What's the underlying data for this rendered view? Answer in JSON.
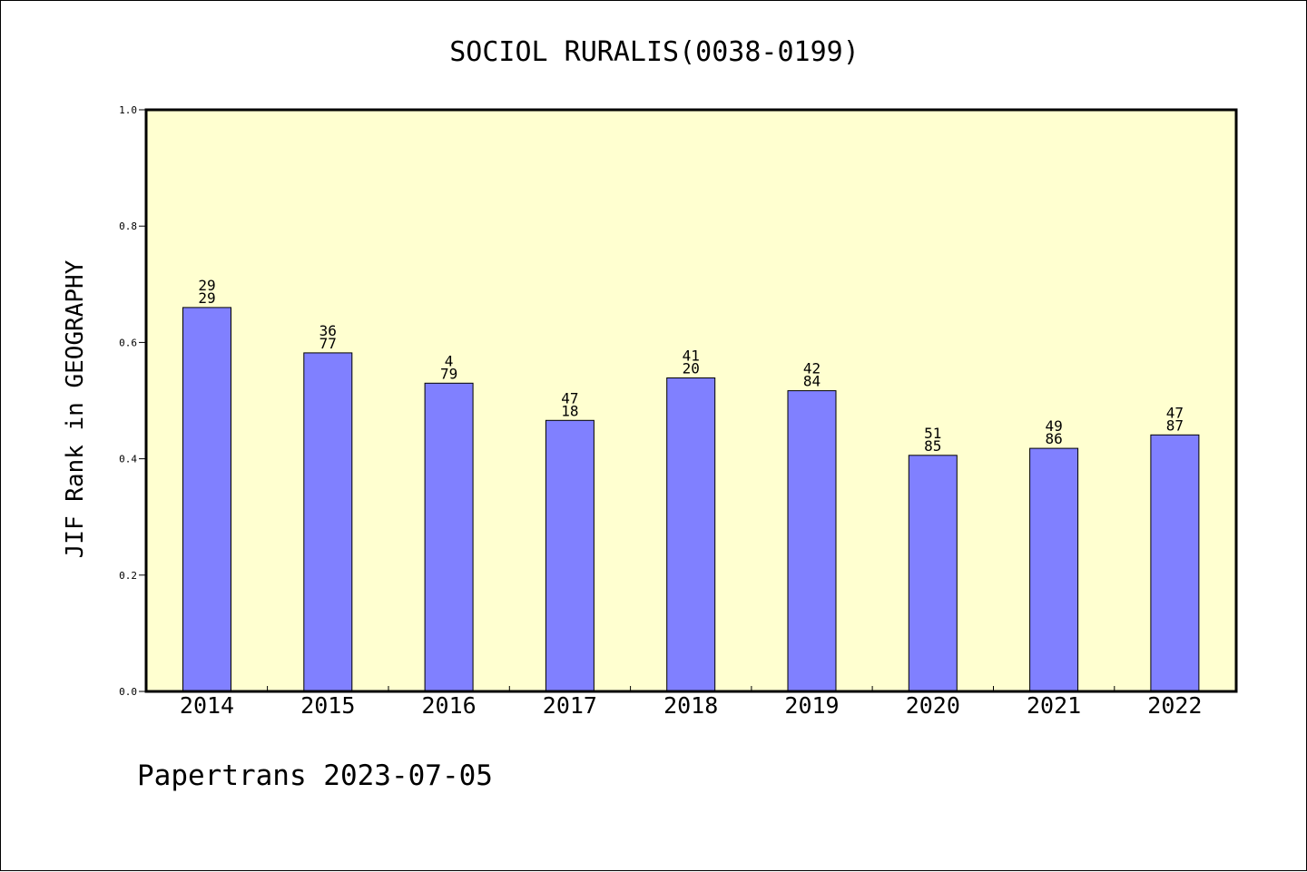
{
  "chart_data": {
    "type": "bar",
    "title": "SOCIOL RURALIS(0038-0199)",
    "xlabel": "",
    "ylabel": "JIF Rank in GEOGRAPHY",
    "ylim": [
      0,
      1.0
    ],
    "yticks": [
      "0.0",
      "0.2",
      "0.4",
      "0.6",
      "0.8",
      "1.0"
    ],
    "categories": [
      "2014",
      "2015",
      "2016",
      "2017",
      "2018",
      "2019",
      "2020",
      "2021",
      "2022"
    ],
    "values": [
      0.66,
      0.582,
      0.53,
      0.466,
      0.539,
      0.517,
      0.406,
      0.418,
      0.441
    ],
    "labels_top": [
      "29",
      "36",
      "4",
      "47",
      "41",
      "42",
      "51",
      "49",
      "47"
    ],
    "labels_bottom": [
      "29",
      "77",
      "79",
      "18",
      "20",
      "84",
      "85",
      "86",
      "87"
    ],
    "grid": false,
    "legend": "none",
    "colors": {
      "plot_background": "#ffffd0",
      "bar_fill": "#8080ff",
      "bar_stroke": "#000000"
    }
  },
  "footer": "Papertrans 2023-07-05"
}
